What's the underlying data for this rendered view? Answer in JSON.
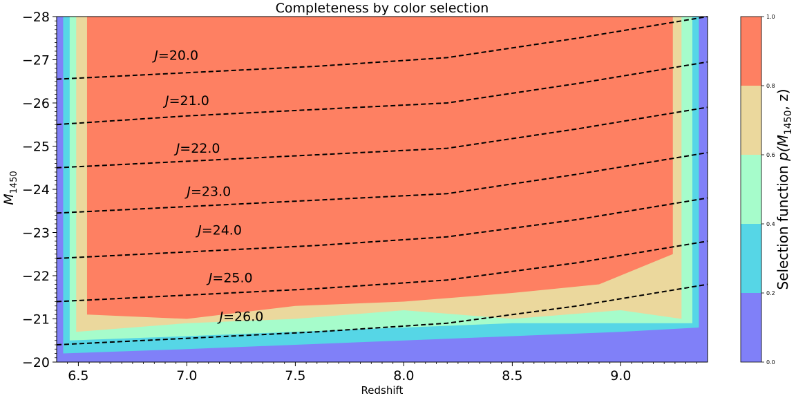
{
  "chart_data": {
    "type": "contour",
    "title": "Completeness by color selection",
    "xlabel": "Redshift",
    "ylabel_main": "M",
    "ylabel_sub": "1450",
    "xlim": [
      6.4,
      9.4
    ],
    "ylim": [
      -20,
      -28
    ],
    "x_ticks": [
      6.5,
      7.0,
      7.5,
      8.0,
      8.5,
      9.0
    ],
    "x_tick_labels": [
      "6.5",
      "7.0",
      "7.5",
      "8.0",
      "8.5",
      "9.0"
    ],
    "y_ticks": [
      -28,
      -27,
      -26,
      -25,
      -24,
      -23,
      -22,
      -21,
      -20
    ],
    "y_tick_labels": [
      "−28",
      "−27",
      "−26",
      "−25",
      "−24",
      "−23",
      "−22",
      "−21",
      "−20"
    ],
    "colorbar": {
      "label_prefix": "Selection function ",
      "label_math": "p(M",
      "label_sub": "1450",
      "label_suffix": ", z)",
      "levels": [
        0.0,
        0.2,
        0.4,
        0.6,
        0.8,
        1.0
      ],
      "tick_labels": [
        "0.0",
        "0.2",
        "0.4",
        "0.6",
        "0.8",
        "1.0"
      ],
      "colors": [
        "#8080f8",
        "#56d6e6",
        "#a6fccb",
        "#ebd89d",
        "#fe8062"
      ]
    },
    "regions": {
      "red_z": [
        6.54,
        9.24
      ],
      "yellow_z": [
        6.49,
        9.28
      ],
      "green_z": [
        6.46,
        9.33
      ],
      "cyan_z": [
        6.43,
        9.36
      ],
      "red_bottom": [
        [
          6.54,
          -21.1
        ],
        [
          7.0,
          -21.0
        ],
        [
          7.5,
          -21.3
        ],
        [
          8.0,
          -21.4
        ],
        [
          8.5,
          -21.6
        ],
        [
          8.9,
          -21.8
        ],
        [
          9.24,
          -22.5
        ]
      ],
      "yellow_bottom": [
        [
          6.49,
          -20.7
        ],
        [
          7.0,
          -20.9
        ],
        [
          7.5,
          -21.0
        ],
        [
          8.0,
          -21.2
        ],
        [
          8.5,
          -21.0
        ],
        [
          9.0,
          -21.2
        ],
        [
          9.28,
          -21.0
        ]
      ],
      "green_bottom": [
        [
          6.46,
          -20.5
        ],
        [
          7.0,
          -20.6
        ],
        [
          7.5,
          -20.7
        ],
        [
          8.0,
          -20.8
        ],
        [
          8.5,
          -20.9
        ],
        [
          9.0,
          -20.9
        ],
        [
          9.33,
          -20.9
        ]
      ],
      "cyan_bottom": [
        [
          6.43,
          -20.2
        ],
        [
          7.0,
          -20.3
        ],
        [
          7.5,
          -20.4
        ],
        [
          8.0,
          -20.5
        ],
        [
          8.5,
          -20.6
        ],
        [
          9.0,
          -20.7
        ],
        [
          9.36,
          -20.8
        ]
      ]
    },
    "series": [
      {
        "name": "J=20.0",
        "label_prefix": "J",
        "label_value": "=20.0",
        "label_pos": [
          6.85,
          -27.0
        ],
        "x": [
          6.4,
          7.0,
          7.6,
          8.2,
          8.8,
          9.4
        ],
        "y": [
          -26.55,
          -26.7,
          -26.85,
          -27.05,
          -27.5,
          -28.0
        ]
      },
      {
        "name": "J=21.0",
        "label_prefix": "J",
        "label_value": "=21.0",
        "label_pos": [
          6.9,
          -25.95
        ],
        "x": [
          6.4,
          7.0,
          7.6,
          8.2,
          8.8,
          9.4
        ],
        "y": [
          -25.5,
          -25.7,
          -25.85,
          -26.0,
          -26.45,
          -26.95
        ]
      },
      {
        "name": "J=22.0",
        "label_prefix": "J",
        "label_value": "=22.0",
        "label_pos": [
          6.95,
          -24.85
        ],
        "x": [
          6.4,
          7.0,
          7.6,
          8.2,
          8.8,
          9.4
        ],
        "y": [
          -24.5,
          -24.65,
          -24.8,
          -24.95,
          -25.4,
          -25.9
        ]
      },
      {
        "name": "J=23.0",
        "label_prefix": "J",
        "label_value": "=23.0",
        "label_pos": [
          7.0,
          -23.85
        ],
        "x": [
          6.4,
          7.0,
          7.6,
          8.2,
          8.8,
          9.4
        ],
        "y": [
          -23.45,
          -23.6,
          -23.75,
          -23.9,
          -24.35,
          -24.85
        ]
      },
      {
        "name": "J=24.0",
        "label_prefix": "J",
        "label_value": "=24.0",
        "label_pos": [
          7.05,
          -22.95
        ],
        "x": [
          6.4,
          7.0,
          7.6,
          8.2,
          8.8,
          9.4
        ],
        "y": [
          -22.4,
          -22.55,
          -22.7,
          -22.9,
          -23.3,
          -23.8
        ]
      },
      {
        "name": "J=25.0",
        "label_prefix": "J",
        "label_value": "=25.0",
        "label_pos": [
          7.1,
          -21.85
        ],
        "x": [
          6.4,
          7.0,
          7.6,
          8.2,
          8.8,
          9.4
        ],
        "y": [
          -21.4,
          -21.55,
          -21.7,
          -21.9,
          -22.3,
          -22.8
        ]
      },
      {
        "name": "J=26.0",
        "label_prefix": "J",
        "label_value": "=26.0",
        "label_pos": [
          7.15,
          -20.95
        ],
        "x": [
          6.4,
          7.0,
          7.6,
          8.2,
          8.8,
          9.4
        ],
        "y": [
          -20.4,
          -20.55,
          -20.7,
          -20.9,
          -21.3,
          -21.8
        ]
      }
    ]
  }
}
